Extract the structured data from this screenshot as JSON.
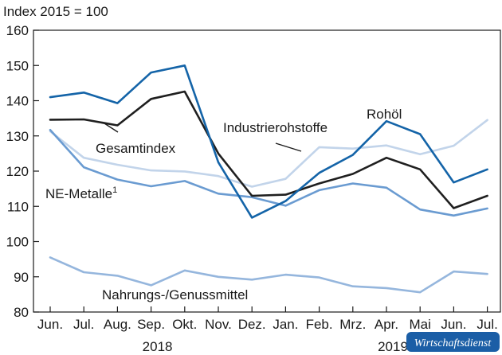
{
  "chart_data": {
    "type": "line",
    "title": "",
    "ylabel": "Index 2015 = 100",
    "xlabel": "",
    "ylim": [
      80,
      160
    ],
    "yticks": [
      80,
      90,
      100,
      110,
      120,
      130,
      140,
      150,
      160
    ],
    "categories": [
      "Jun.",
      "Jul.",
      "Aug.",
      "Sep.",
      "Okt.",
      "Nov.",
      "Dez.",
      "Jan.",
      "Feb.",
      "Mrz.",
      "Apr.",
      "Mai",
      "Jun.",
      "Jul."
    ],
    "year_labels": [
      {
        "text": "2018",
        "at_category": 3
      },
      {
        "text": "2019",
        "at_category": 10
      }
    ],
    "grid": false,
    "series": [
      {
        "name": "Rohöl",
        "color": "#1464a8",
        "width": 2.6,
        "values": [
          141,
          142.3,
          139.3,
          148,
          150,
          122.5,
          106.8,
          111.5,
          119.5,
          124.6,
          134.2,
          130.5,
          116.8,
          120.5
        ]
      },
      {
        "name": "Industrierohstoffe",
        "color": "#c2d4ea",
        "width": 2.6,
        "values": [
          131.3,
          123.8,
          121.8,
          120.2,
          119.9,
          118.6,
          115.6,
          117.8,
          126.8,
          126.4,
          127.3,
          124.8,
          127.2,
          134.5
        ]
      },
      {
        "name": "Gesamtindex",
        "color": "#1f1f1f",
        "width": 2.6,
        "values": [
          134.6,
          134.7,
          133,
          140.5,
          142.6,
          125,
          113,
          113.3,
          116.5,
          119.2,
          123.8,
          120.5,
          109.5,
          113
        ]
      },
      {
        "name": "NE-Metalle",
        "color": "#6a9bd1",
        "width": 2.6,
        "values": [
          131.7,
          121.1,
          117.6,
          115.7,
          117.2,
          113.6,
          112.6,
          110.2,
          114.6,
          116.5,
          115.3,
          109.1,
          107.4,
          109.4
        ]
      },
      {
        "name": "Nahrungs-/Genussmittel",
        "color": "#95b6dd",
        "width": 2.6,
        "values": [
          95.5,
          91.3,
          90.3,
          87.6,
          91.8,
          90,
          89.2,
          90.6,
          89.8,
          87.3,
          86.8,
          85.6,
          91.5,
          90.8
        ]
      }
    ],
    "annotations": [
      {
        "text": "Rohöl"
      },
      {
        "text": "Industrierohstoffe"
      },
      {
        "text": "Gesamtindex"
      },
      {
        "text": "NE-Metalle"
      },
      {
        "text": "Nahrungs-/Genussmittel"
      }
    ],
    "footnote_marker": "1"
  },
  "badge": {
    "text": "Wirtschaftsdienst",
    "color": "#1b5ea6"
  }
}
